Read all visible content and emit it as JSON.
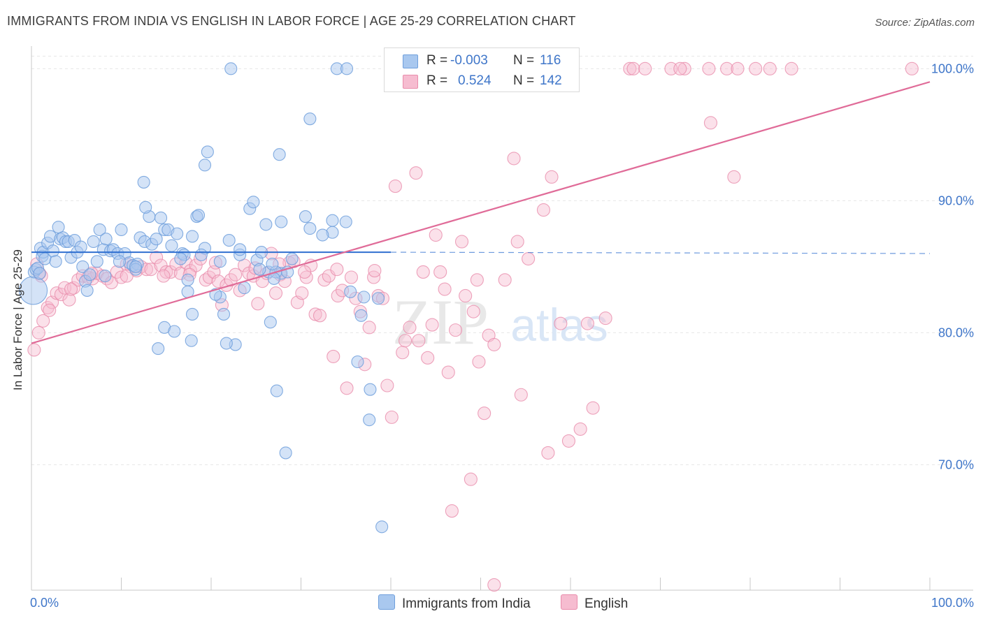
{
  "title": "IMMIGRANTS FROM INDIA VS ENGLISH IN LABOR FORCE | AGE 25-29 CORRELATION CHART",
  "source": "Source: ZipAtlas.com",
  "watermark": {
    "zip": "ZIP",
    "atlas": "atlas"
  },
  "colors": {
    "blue_fill": "#a9c8ef",
    "blue_stroke": "#6f9fdc",
    "blue_line": "#2f6fd0",
    "pink_fill": "#f6bcd0",
    "pink_stroke": "#e98cab",
    "pink_line": "#e06b98",
    "tick_label": "#3f76c9",
    "grid": "#e6e6e6"
  },
  "legend": {
    "rows": [
      {
        "r_label": "R =",
        "r_value": "-0.003",
        "n_label": "N =",
        "n_value": "116"
      },
      {
        "r_label": "R =",
        "r_value": "0.524",
        "n_label": "N =",
        "n_value": "142"
      }
    ]
  },
  "bottom_legend": {
    "india": "Immigrants from India",
    "english": "English"
  },
  "chart_data": {
    "type": "scatter",
    "title": "IMMIGRANTS FROM INDIA VS ENGLISH IN LABOR FORCE | AGE 25-29 CORRELATION CHART",
    "ylabel": "In Labor Force | Age 25-29",
    "xlim": [
      0,
      100
    ],
    "ylim": [
      60.5,
      101.5
    ],
    "x_tick_labels": [
      "0.0%",
      "100.0%"
    ],
    "y_tick_labels": [
      "70.0%",
      "80.0%",
      "90.0%",
      "100.0%"
    ],
    "y_ticks": [
      70,
      80,
      90,
      100
    ],
    "grid": true,
    "legend_position": "top-center",
    "series": [
      {
        "name": "Immigrants from India",
        "r": -0.003,
        "n": 116,
        "trend": {
          "x0": 0,
          "y0": 86.1,
          "x1": 40,
          "y1": 86.1,
          "dashed_to_x": 100,
          "dashed_y1": 86.0
        },
        "points": [
          [
            0.2,
            83.2
          ],
          [
            0.3,
            84.6
          ],
          [
            0.5,
            84.8
          ],
          [
            0.7,
            84.9
          ],
          [
            0.9,
            84.5
          ],
          [
            1.0,
            86.4
          ],
          [
            1.2,
            85.8
          ],
          [
            1.3,
            86.1
          ],
          [
            1.5,
            85.6
          ],
          [
            1.8,
            86.8
          ],
          [
            2.1,
            87.3
          ],
          [
            2.4,
            86.2
          ],
          [
            2.7,
            85.4
          ],
          [
            3.0,
            88.0
          ],
          [
            3.2,
            87.1
          ],
          [
            3.5,
            87.2
          ],
          [
            3.8,
            86.9
          ],
          [
            4.1,
            86.9
          ],
          [
            4.4,
            85.7
          ],
          [
            4.8,
            87.0
          ],
          [
            5.1,
            86.1
          ],
          [
            5.5,
            86.5
          ],
          [
            5.7,
            85.0
          ],
          [
            6.0,
            83.9
          ],
          [
            6.2,
            83.2
          ],
          [
            6.5,
            84.4
          ],
          [
            6.9,
            86.9
          ],
          [
            7.3,
            85.4
          ],
          [
            7.6,
            87.8
          ],
          [
            8.0,
            86.3
          ],
          [
            8.3,
            87.1
          ],
          [
            8.8,
            86.2
          ],
          [
            9.1,
            86.3
          ],
          [
            9.6,
            86.0
          ],
          [
            10.0,
            87.8
          ],
          [
            10.4,
            86.0
          ],
          [
            10.9,
            85.3
          ],
          [
            11.3,
            85.1
          ],
          [
            11.8,
            85.2
          ],
          [
            12.1,
            87.2
          ],
          [
            12.6,
            86.9
          ],
          [
            11.6,
            84.8
          ],
          [
            13.1,
            88.8
          ],
          [
            12.5,
            91.4
          ],
          [
            12.7,
            89.5
          ],
          [
            13.4,
            86.7
          ],
          [
            13.9,
            87.1
          ],
          [
            14.4,
            88.7
          ],
          [
            14.8,
            87.8
          ],
          [
            15.2,
            87.8
          ],
          [
            15.6,
            86.6
          ],
          [
            16.2,
            87.5
          ],
          [
            16.8,
            86.0
          ],
          [
            17.0,
            85.9
          ],
          [
            14.8,
            80.4
          ],
          [
            15.9,
            80.1
          ],
          [
            14.1,
            78.8
          ],
          [
            17.4,
            84.0
          ],
          [
            17.4,
            83.1
          ],
          [
            17.8,
            79.4
          ],
          [
            17.9,
            81.4
          ],
          [
            18.4,
            88.8
          ],
          [
            18.6,
            88.9
          ],
          [
            19.3,
            86.4
          ],
          [
            19.6,
            93.7
          ],
          [
            18.9,
            85.9
          ],
          [
            21.0,
            82.7
          ],
          [
            22.0,
            87.0
          ],
          [
            21.4,
            81.4
          ],
          [
            22.7,
            79.1
          ],
          [
            23.2,
            85.9
          ],
          [
            22.2,
            100.0
          ],
          [
            23.2,
            86.3
          ],
          [
            24.3,
            89.4
          ],
          [
            24.7,
            89.9
          ],
          [
            25.1,
            85.5
          ],
          [
            25.6,
            86.1
          ],
          [
            23.7,
            83.4
          ],
          [
            26.1,
            88.2
          ],
          [
            26.4,
            84.6
          ],
          [
            25.4,
            84.8
          ],
          [
            27.6,
            93.5
          ],
          [
            27.8,
            88.4
          ],
          [
            27.8,
            84.5
          ],
          [
            27.3,
            75.6
          ],
          [
            27.2,
            84.6
          ],
          [
            28.3,
            70.9
          ],
          [
            29.0,
            85.6
          ],
          [
            27.0,
            84.1
          ],
          [
            26.6,
            80.8
          ],
          [
            30.5,
            88.8
          ],
          [
            31.0,
            96.2
          ],
          [
            31.0,
            87.9
          ],
          [
            33.5,
            88.5
          ],
          [
            33.5,
            87.6
          ],
          [
            32.4,
            87.4
          ],
          [
            35.0,
            88.4
          ],
          [
            34.0,
            100.0
          ],
          [
            35.1,
            100.0
          ],
          [
            36.7,
            81.3
          ],
          [
            35.5,
            83.1
          ],
          [
            36.3,
            77.8
          ],
          [
            37.7,
            75.7
          ],
          [
            37.6,
            73.4
          ],
          [
            38.6,
            82.6
          ],
          [
            39.0,
            65.3
          ],
          [
            40.5,
            100.0
          ],
          [
            40.0,
            100.0
          ],
          [
            19.3,
            92.7
          ],
          [
            17.9,
            87.3
          ],
          [
            20.5,
            82.9
          ],
          [
            21.7,
            79.2
          ],
          [
            11.6,
            85.0
          ],
          [
            9.8,
            85.4
          ],
          [
            8.2,
            84.3
          ],
          [
            16.6,
            85.6
          ],
          [
            21.0,
            85.4
          ],
          [
            37.0,
            82.7
          ],
          [
            28.5,
            84.6
          ],
          [
            26.8,
            85.2
          ]
        ]
      },
      {
        "name": "English",
        "r": 0.524,
        "n": 142,
        "trend": {
          "x0": 0,
          "y0": 79.2,
          "x1": 100,
          "y1": 99.0
        },
        "points": [
          [
            0.3,
            78.7
          ],
          [
            0.8,
            80.0
          ],
          [
            1.3,
            80.9
          ],
          [
            1.8,
            81.9
          ],
          [
            2.3,
            82.3
          ],
          [
            2.8,
            83.0
          ],
          [
            3.3,
            82.9
          ],
          [
            3.7,
            83.4
          ],
          [
            4.2,
            82.5
          ],
          [
            4.7,
            83.4
          ],
          [
            5.2,
            84.0
          ],
          [
            5.7,
            84.3
          ],
          [
            6.3,
            84.2
          ],
          [
            6.8,
            84.1
          ],
          [
            7.3,
            84.5
          ],
          [
            7.9,
            84.3
          ],
          [
            8.4,
            84.1
          ],
          [
            8.9,
            83.8
          ],
          [
            9.5,
            84.6
          ],
          [
            10.0,
            84.2
          ],
          [
            10.6,
            85.2
          ],
          [
            11.1,
            85.0
          ],
          [
            11.7,
            84.7
          ],
          [
            12.2,
            85.0
          ],
          [
            12.8,
            84.8
          ],
          [
            13.3,
            84.8
          ],
          [
            13.9,
            85.7
          ],
          [
            14.4,
            85.1
          ],
          [
            15.0,
            84.6
          ],
          [
            15.5,
            84.6
          ],
          [
            16.1,
            85.2
          ],
          [
            16.6,
            84.5
          ],
          [
            17.2,
            85.3
          ],
          [
            17.7,
            84.7
          ],
          [
            18.3,
            85.1
          ],
          [
            18.8,
            85.6
          ],
          [
            19.4,
            84.0
          ],
          [
            19.8,
            84.2
          ],
          [
            20.3,
            84.6
          ],
          [
            20.8,
            83.9
          ],
          [
            21.2,
            82.1
          ],
          [
            21.7,
            83.6
          ],
          [
            22.2,
            84.0
          ],
          [
            22.7,
            84.4
          ],
          [
            23.2,
            83.2
          ],
          [
            23.7,
            85.1
          ],
          [
            24.2,
            84.5
          ],
          [
            24.7,
            84.3
          ],
          [
            25.2,
            82.2
          ],
          [
            25.7,
            83.9
          ],
          [
            26.2,
            84.5
          ],
          [
            26.7,
            86.0
          ],
          [
            27.2,
            83.0
          ],
          [
            27.7,
            84.4
          ],
          [
            28.2,
            83.9
          ],
          [
            28.7,
            85.3
          ],
          [
            29.2,
            85.4
          ],
          [
            29.6,
            82.3
          ],
          [
            30.1,
            83.0
          ],
          [
            30.6,
            84.2
          ],
          [
            31.1,
            85.1
          ],
          [
            31.6,
            81.4
          ],
          [
            32.1,
            81.3
          ],
          [
            32.6,
            84.0
          ],
          [
            33.1,
            84.3
          ],
          [
            33.6,
            78.2
          ],
          [
            34.1,
            82.8
          ],
          [
            34.6,
            83.2
          ],
          [
            35.1,
            75.8
          ],
          [
            35.6,
            84.2
          ],
          [
            36.1,
            82.6
          ],
          [
            36.6,
            81.6
          ],
          [
            37.1,
            77.6
          ],
          [
            37.6,
            80.4
          ],
          [
            38.1,
            84.2
          ],
          [
            38.6,
            82.8
          ],
          [
            39.1,
            82.6
          ],
          [
            39.6,
            76.0
          ],
          [
            40.1,
            73.6
          ],
          [
            40.5,
            91.1
          ],
          [
            41.3,
            78.5
          ],
          [
            41.6,
            79.4
          ],
          [
            42.1,
            80.4
          ],
          [
            42.8,
            92.1
          ],
          [
            43.1,
            79.4
          ],
          [
            43.6,
            84.6
          ],
          [
            44.1,
            78.1
          ],
          [
            44.6,
            80.6
          ],
          [
            45.0,
            87.4
          ],
          [
            45.5,
            84.6
          ],
          [
            46.0,
            83.3
          ],
          [
            46.4,
            77.0
          ],
          [
            46.8,
            66.5
          ],
          [
            47.2,
            80.2
          ],
          [
            47.9,
            86.9
          ],
          [
            48.3,
            82.8
          ],
          [
            48.9,
            68.9
          ],
          [
            49.2,
            81.6
          ],
          [
            49.8,
            77.8
          ],
          [
            50.4,
            73.9
          ],
          [
            50.9,
            79.8
          ],
          [
            51.5,
            60.9
          ],
          [
            49.6,
            84.0
          ],
          [
            51.5,
            79.1
          ],
          [
            52.7,
            84.0
          ],
          [
            53.7,
            93.2
          ],
          [
            54.1,
            86.9
          ],
          [
            54.5,
            75.3
          ],
          [
            55.3,
            85.6
          ],
          [
            57.0,
            89.3
          ],
          [
            57.5,
            70.9
          ],
          [
            57.9,
            91.8
          ],
          [
            58.9,
            80.7
          ],
          [
            59.8,
            71.8
          ],
          [
            61.1,
            72.7
          ],
          [
            61.9,
            80.7
          ],
          [
            63.9,
            81.1
          ],
          [
            62.5,
            74.3
          ],
          [
            66.6,
            100.0
          ],
          [
            67.0,
            100.0
          ],
          [
            68.3,
            100.0
          ],
          [
            71.2,
            100.0
          ],
          [
            72.7,
            100.0
          ],
          [
            72.2,
            100.0
          ],
          [
            75.4,
            100.0
          ],
          [
            75.6,
            95.9
          ],
          [
            77.4,
            100.0
          ],
          [
            78.6,
            100.0
          ],
          [
            80.6,
            100.0
          ],
          [
            78.2,
            91.8
          ],
          [
            82.2,
            100.0
          ],
          [
            84.6,
            100.0
          ],
          [
            98.0,
            100.0
          ],
          [
            0.6,
            85.2
          ],
          [
            0.9,
            84.5
          ],
          [
            1.1,
            84.3
          ],
          [
            2.0,
            81.7
          ],
          [
            4.4,
            83.3
          ],
          [
            6.7,
            84.5
          ],
          [
            10.6,
            84.3
          ],
          [
            14.7,
            84.3
          ],
          [
            17.6,
            84.4
          ],
          [
            20.5,
            85.3
          ],
          [
            24.9,
            84.9
          ],
          [
            27.6,
            85.2
          ],
          [
            30.4,
            84.6
          ],
          [
            34.0,
            84.8
          ],
          [
            38.2,
            84.7
          ]
        ]
      }
    ]
  }
}
